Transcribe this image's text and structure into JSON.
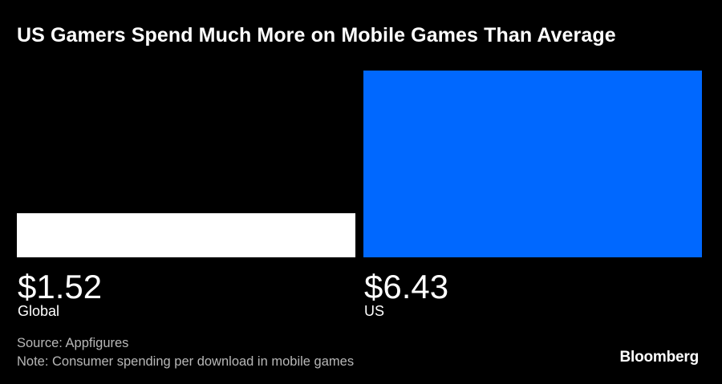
{
  "title": "US Gamers Spend Much More on Mobile Games Than Average",
  "chart_data": {
    "type": "bar",
    "categories": [
      "Global",
      "US"
    ],
    "values": [
      1.52,
      6.43
    ],
    "value_labels": [
      "$1.52",
      "$6.43"
    ],
    "colors": [
      "#ffffff",
      "#0068ff"
    ],
    "ylim": [
      0,
      6.43
    ]
  },
  "footer": {
    "source": "Source: Appfigures",
    "note": "Note: Consumer spending per download in mobile games",
    "brand": "Bloomberg"
  }
}
